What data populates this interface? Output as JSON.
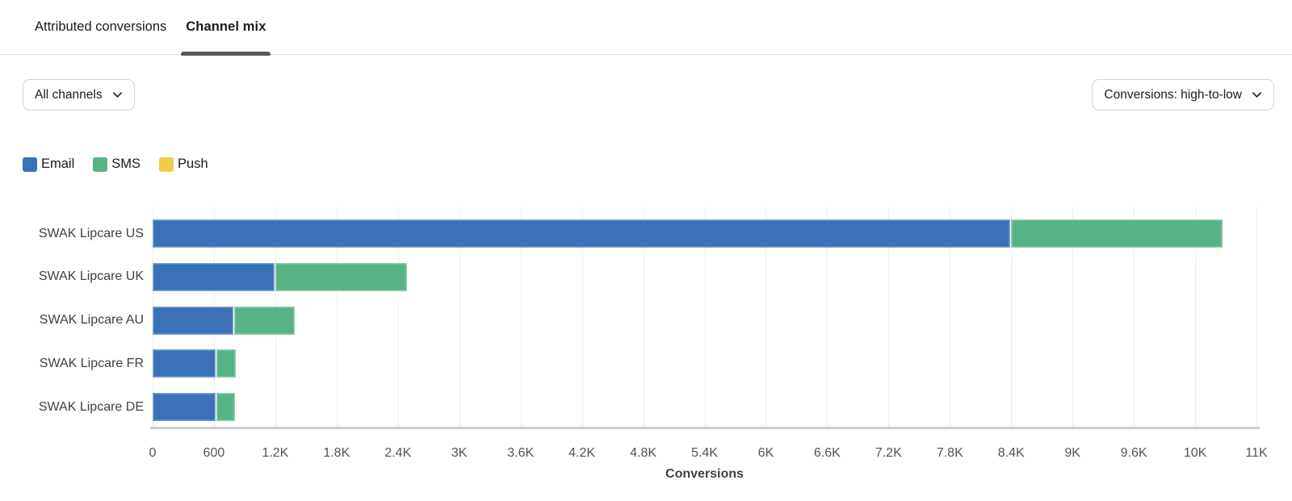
{
  "tabs": [
    {
      "label": "Attributed conversions",
      "active": false
    },
    {
      "label": "Channel mix",
      "active": true
    }
  ],
  "filters": {
    "channel": {
      "label": "All channels"
    },
    "sort": {
      "label": "Conversions: high-to-low"
    }
  },
  "legend": [
    {
      "label": "Email",
      "color": "#3a71b7"
    },
    {
      "label": "SMS",
      "color": "#57b385"
    },
    {
      "label": "Push",
      "color": "#f0cb4a"
    }
  ],
  "chart_data": {
    "type": "bar",
    "orientation": "horizontal",
    "stacked": true,
    "title": "",
    "xlabel": "Conversions",
    "categories": [
      "SWAK Lipcare US",
      "SWAK Lipcare UK",
      "SWAK Lipcare AU",
      "SWAK Lipcare FR",
      "SWAK Lipcare DE"
    ],
    "series": [
      {
        "name": "Email",
        "color": "#3a71b7",
        "values": [
          8400,
          1200,
          800,
          620,
          620
        ]
      },
      {
        "name": "SMS",
        "color": "#57b385",
        "values": [
          2080,
          1300,
          600,
          200,
          190
        ]
      },
      {
        "name": "Push",
        "color": "#f0cb4a",
        "values": [
          0,
          0,
          0,
          0,
          0
        ]
      }
    ],
    "xlim": [
      0,
      10800
    ],
    "xticks": [
      {
        "value": 0,
        "label": "0"
      },
      {
        "value": 600,
        "label": "600"
      },
      {
        "value": 1200,
        "label": "1.2K"
      },
      {
        "value": 1800,
        "label": "1.8K"
      },
      {
        "value": 2400,
        "label": "2.4K"
      },
      {
        "value": 3000,
        "label": "3K"
      },
      {
        "value": 3600,
        "label": "3.6K"
      },
      {
        "value": 4200,
        "label": "4.2K"
      },
      {
        "value": 4800,
        "label": "4.8K"
      },
      {
        "value": 5400,
        "label": "5.4K"
      },
      {
        "value": 6000,
        "label": "6K"
      },
      {
        "value": 6600,
        "label": "6.6K"
      },
      {
        "value": 7200,
        "label": "7.2K"
      },
      {
        "value": 7800,
        "label": "7.8K"
      },
      {
        "value": 8400,
        "label": "8.4K"
      },
      {
        "value": 9000,
        "label": "9K"
      },
      {
        "value": 9600,
        "label": "9.6K"
      },
      {
        "value": 10200,
        "label": "10K"
      },
      {
        "value": 10800,
        "label": "11K"
      }
    ],
    "grid": true,
    "legend_position": "top"
  }
}
